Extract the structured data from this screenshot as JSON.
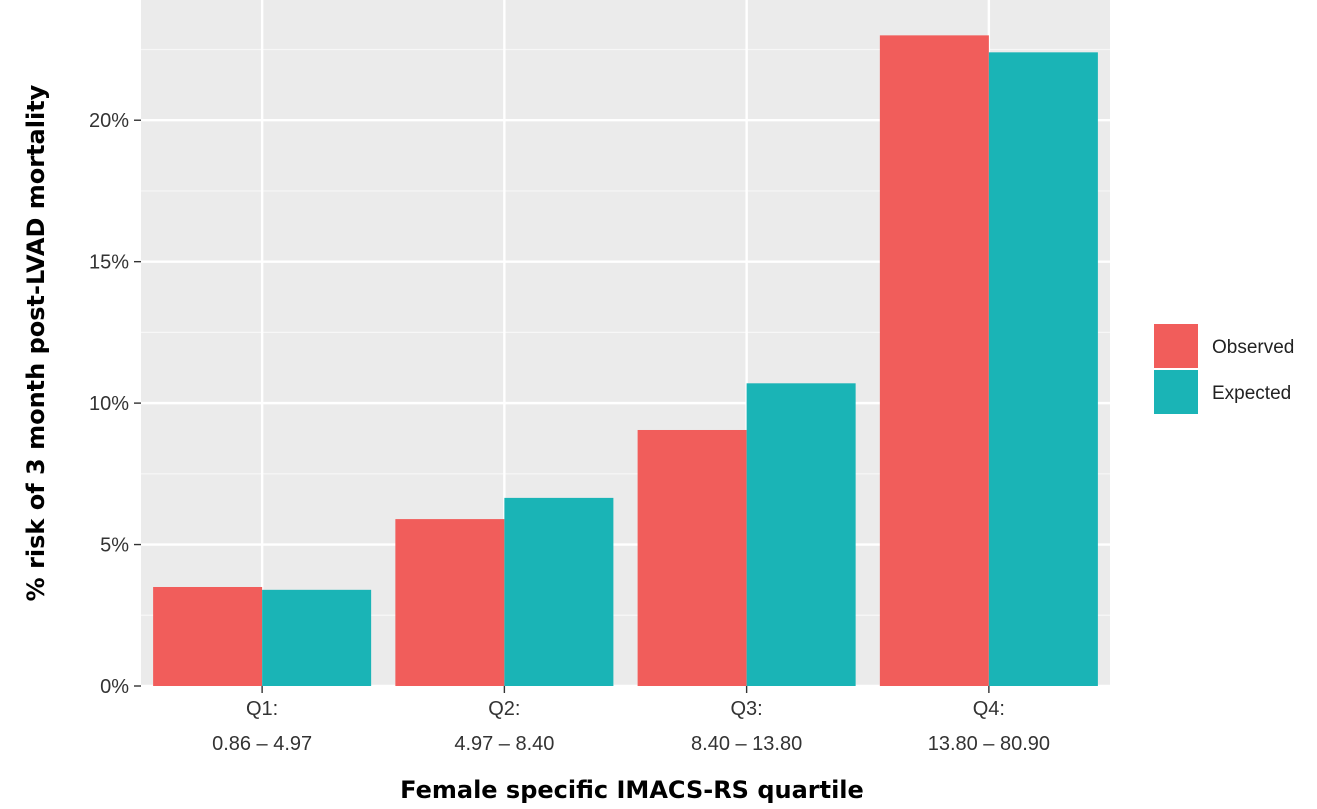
{
  "chart_data": {
    "type": "bar",
    "categories": [
      [
        "Q1:",
        "0.86 – 4.97"
      ],
      [
        "Q2:",
        "4.97 – 8.40"
      ],
      [
        "Q3:",
        "8.40 – 13.80"
      ],
      [
        "Q4:",
        "13.80 – 80.90"
      ]
    ],
    "series": [
      {
        "name": "Observed",
        "color": "#f15d5b",
        "values": [
          3.5,
          5.9,
          9.05,
          23.0
        ]
      },
      {
        "name": "Expected",
        "color": "#1ab4b6",
        "values": [
          3.4,
          6.65,
          10.7,
          22.4
        ]
      }
    ],
    "xlabel": "Female specific IMACS-RS quartile",
    "ylabel": "% risk of 3 month post-LVAD mortality",
    "ylim": [
      0,
      24.25
    ],
    "yticks": [
      0,
      5,
      10,
      15,
      20
    ],
    "ytick_labels": [
      "0%",
      "5%",
      "10%",
      "15%",
      "20%"
    ],
    "grid": true,
    "panel_background": "#ebebeb",
    "legend_position": "right"
  }
}
